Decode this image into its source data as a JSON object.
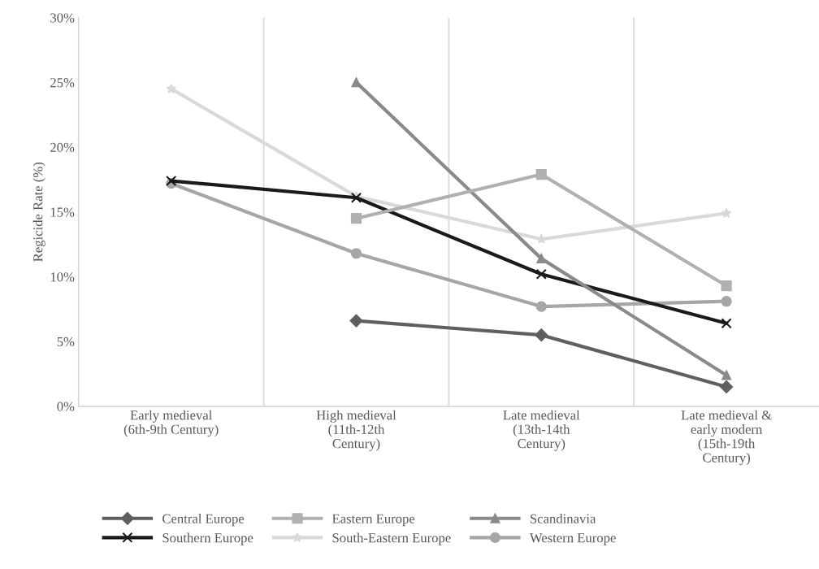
{
  "chart_data": {
    "type": "line",
    "ylabel": "Regicide Rate (%)",
    "categories": [
      "Early medieval\n(6th-9th Century)",
      "High medieval\n(11th-12th\nCentury)",
      "Late medieval\n(13th-14th\nCentury)",
      "Late medieval &\nearly modern\n(15th-19th\nCentury)"
    ],
    "series": [
      {
        "name": "Central Europe",
        "color": "#5f5f5f",
        "marker": "diamond",
        "values": [
          null,
          6.6,
          5.5,
          1.5
        ]
      },
      {
        "name": "Eastern Europe",
        "color": "#b0b0b0",
        "marker": "square",
        "values": [
          null,
          14.5,
          17.9,
          9.3
        ]
      },
      {
        "name": "Scandinavia",
        "color": "#8a8a8a",
        "marker": "triangle",
        "values": [
          null,
          25.0,
          11.4,
          2.4
        ]
      },
      {
        "name": "Southern Europe",
        "color": "#1a1a1a",
        "marker": "cross",
        "values": [
          17.4,
          16.1,
          10.2,
          6.4
        ]
      },
      {
        "name": "South-Eastern Europe",
        "color": "#d9d9d9",
        "marker": "star",
        "values": [
          24.5,
          16.2,
          12.9,
          14.9
        ]
      },
      {
        "name": "Western Europe",
        "color": "#a6a6a6",
        "marker": "circle",
        "values": [
          17.2,
          11.8,
          7.7,
          8.1
        ]
      }
    ],
    "ylim": [
      0,
      30
    ],
    "yticks": [
      {
        "value": 0,
        "label": "0%"
      },
      {
        "value": 5,
        "label": "5%"
      },
      {
        "value": 10,
        "label": "10%"
      },
      {
        "value": 15,
        "label": "15%"
      },
      {
        "value": 20,
        "label": "20%"
      },
      {
        "value": 25,
        "label": "25%"
      },
      {
        "value": 30,
        "label": "30%"
      }
    ],
    "grid": "x",
    "legend": "bottom",
    "line_style": "solid"
  }
}
